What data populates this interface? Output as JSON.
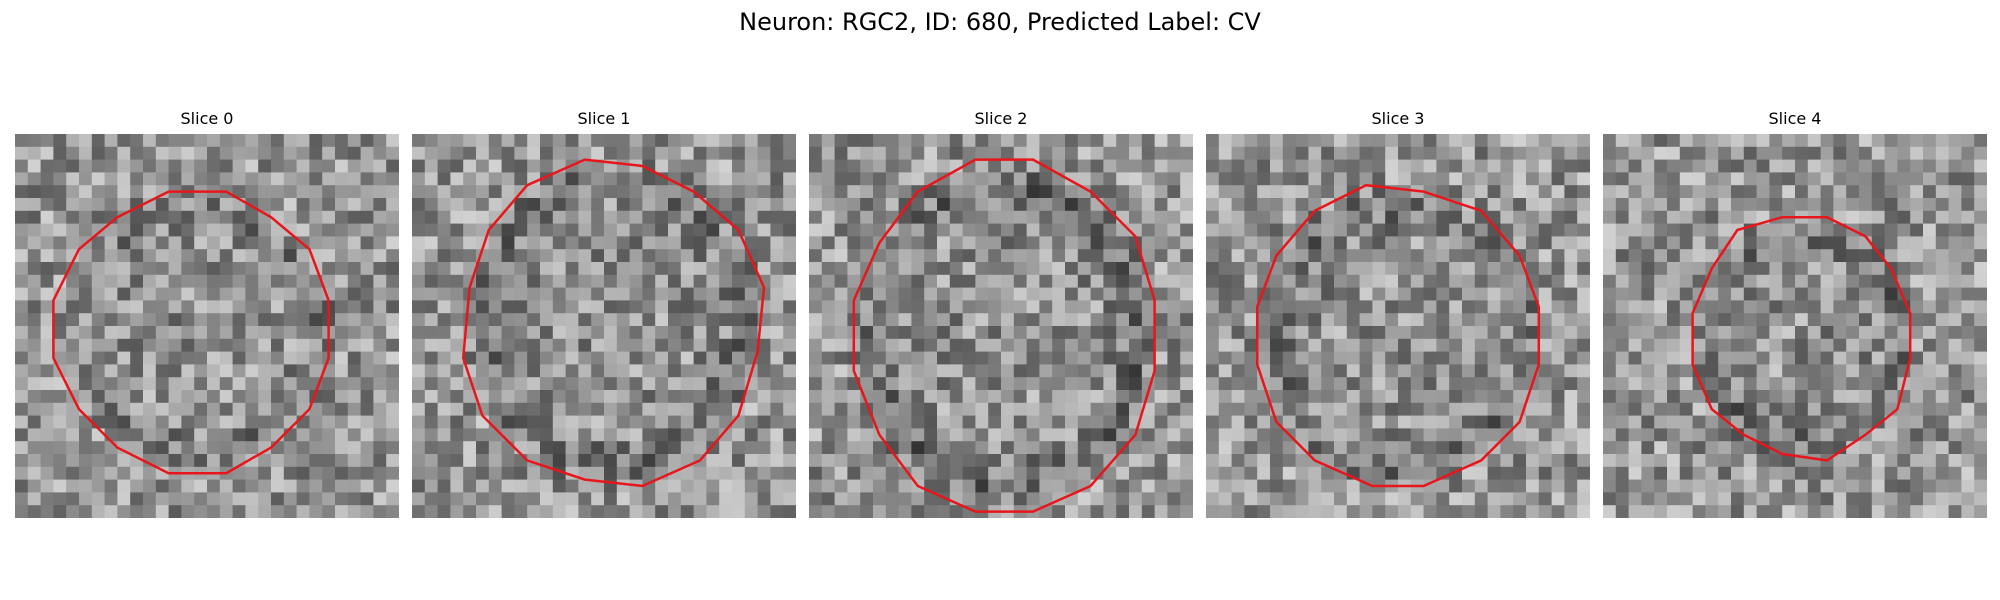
{
  "figure": {
    "title": "Neuron: RGC2, ID: 680, Predicted Label: CV"
  },
  "colors": {
    "contour": "#e8161b",
    "background": "#ffffff",
    "colormap": "gray"
  },
  "slices": [
    {
      "title": "Slice 0"
    },
    {
      "title": "Slice 1"
    },
    {
      "title": "Slice 2"
    },
    {
      "title": "Slice 3"
    },
    {
      "title": "Slice 4"
    }
  ]
}
